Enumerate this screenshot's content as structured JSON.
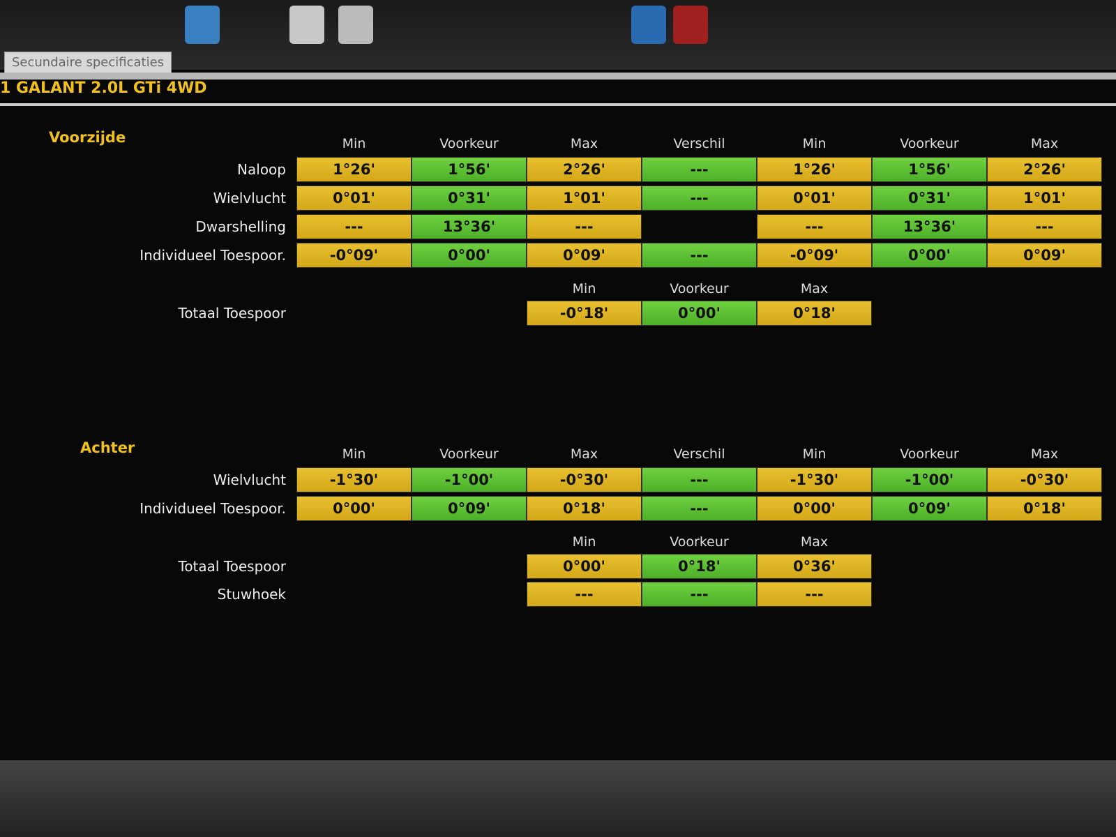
{
  "tab": "Secundaire specificaties",
  "vehicle": "1 GALANT 2.0L GTi 4WD",
  "sections": [
    {
      "title": "Voorzijde",
      "headers": [
        "Min",
        "Voorkeur",
        "Max",
        "Verschil",
        "Min",
        "Voorkeur",
        "Max"
      ],
      "rows": [
        {
          "label": "Naloop",
          "cells": [
            "1°26'",
            "1°56'",
            "2°26'",
            "---",
            "1°26'",
            "1°56'",
            "2°26'"
          ]
        },
        {
          "label": "Wielvlucht",
          "cells": [
            "0°01'",
            "0°31'",
            "1°01'",
            "---",
            "0°01'",
            "0°31'",
            "1°01'"
          ]
        },
        {
          "label": "Dwarshelling",
          "cells": [
            "---",
            "13°36'",
            "---",
            null,
            "---",
            "13°36'",
            "---"
          ]
        },
        {
          "label": "Individueel Toespoor.",
          "cells": [
            "-0°09'",
            "0°00'",
            "0°09'",
            "---",
            "-0°09'",
            "0°00'",
            "0°09'"
          ]
        }
      ],
      "total": {
        "headers": [
          "Min",
          "Voorkeur",
          "Max"
        ],
        "rows": [
          {
            "label": "Totaal Toespoor",
            "cells": [
              "-0°18'",
              "0°00'",
              "0°18'"
            ]
          }
        ]
      }
    },
    {
      "title": "Achter",
      "headers": [
        "Min",
        "Voorkeur",
        "Max",
        "Verschil",
        "Min",
        "Voorkeur",
        "Max"
      ],
      "rows": [
        {
          "label": "Wielvlucht",
          "cells": [
            "-1°30'",
            "-1°00'",
            "-0°30'",
            "---",
            "-1°30'",
            "-1°00'",
            "-0°30'"
          ]
        },
        {
          "label": "Individueel Toespoor.",
          "cells": [
            "0°00'",
            "0°09'",
            "0°18'",
            "---",
            "0°00'",
            "0°09'",
            "0°18'"
          ]
        }
      ],
      "total": {
        "headers": [
          "Min",
          "Voorkeur",
          "Max"
        ],
        "rows": [
          {
            "label": "Totaal Toespoor",
            "cells": [
              "0°00'",
              "0°18'",
              "0°36'"
            ]
          },
          {
            "label": "Stuwhoek",
            "cells": [
              "---",
              "---",
              "---"
            ]
          }
        ]
      }
    }
  ]
}
